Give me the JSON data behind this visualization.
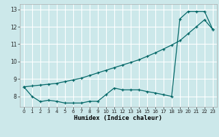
{
  "xlabel": "Humidex (Indice chaleur)",
  "bg_color": "#cce8ea",
  "grid_color": "#ffffff",
  "line_color": "#006666",
  "xlim": [
    -0.5,
    23.5
  ],
  "ylim": [
    7.4,
    13.3
  ],
  "xticks": [
    0,
    1,
    2,
    3,
    4,
    5,
    6,
    7,
    8,
    9,
    10,
    11,
    12,
    13,
    14,
    15,
    16,
    17,
    18,
    19,
    20,
    21,
    22,
    23
  ],
  "yticks": [
    8,
    9,
    10,
    11,
    12,
    13
  ],
  "line1_x": [
    0,
    1,
    2,
    3,
    4,
    5,
    6,
    7,
    8,
    9,
    10,
    11,
    12,
    13,
    14,
    15,
    16,
    17,
    18,
    19,
    20,
    21,
    22,
    23
  ],
  "line1_y": [
    8.55,
    8.0,
    7.7,
    7.78,
    7.72,
    7.62,
    7.62,
    7.62,
    7.72,
    7.72,
    8.1,
    8.48,
    8.38,
    8.38,
    8.38,
    8.28,
    8.2,
    8.1,
    8.0,
    12.45,
    12.88,
    12.88,
    12.88,
    11.85
  ],
  "line2_x": [
    0,
    1,
    2,
    3,
    4,
    5,
    6,
    7,
    8,
    9,
    10,
    11,
    12,
    13,
    14,
    15,
    16,
    17,
    18,
    19,
    20,
    21,
    22,
    23
  ],
  "line2_y": [
    8.55,
    8.6,
    8.65,
    8.7,
    8.75,
    8.85,
    8.95,
    9.05,
    9.2,
    9.35,
    9.5,
    9.65,
    9.8,
    9.95,
    10.1,
    10.3,
    10.5,
    10.72,
    10.95,
    11.2,
    11.6,
    12.0,
    12.4,
    11.85
  ]
}
